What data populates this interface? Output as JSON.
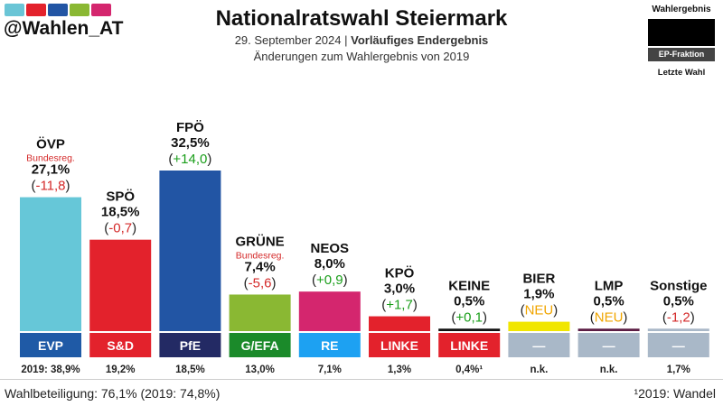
{
  "header": {
    "handle": "@Wahlen_AT",
    "title": "Nationalratswahl Steiermark",
    "date": "29. September 2024",
    "separator": " | ",
    "result_type": "Vorläufiges Endergebnis",
    "subtitle2": "Änderungen zum Wahlergebnis von 2019",
    "brand_colors": [
      "#6ac5d6",
      "#e3222c",
      "#2255a4",
      "#8ab833",
      "#d4266e"
    ]
  },
  "legend": {
    "title": "Wahlergebnis",
    "ep_label": "EP-Fraktion",
    "last_label": "Letzte Wahl"
  },
  "chart_data": {
    "type": "bar",
    "ylim": [
      0,
      35
    ],
    "categories": [
      "ÖVP",
      "SPÖ",
      "FPÖ",
      "GRÜNE",
      "NEOS",
      "KPÖ",
      "KEINE",
      "BIER",
      "LMP",
      "Sonstige"
    ],
    "values": [
      27.1,
      18.5,
      32.5,
      7.4,
      8.0,
      3.0,
      0.5,
      1.9,
      0.5,
      0.5
    ],
    "value_labels": [
      "27,1%",
      "18,5%",
      "32,5%",
      "7,4%",
      "8,0%",
      "3,0%",
      "0,5%",
      "1,9%",
      "0,5%",
      "0,5%"
    ],
    "change_labels": [
      "-11,8",
      "-0,7",
      "+14,0",
      "-5,6",
      "+0,9",
      "+1,7",
      "+0,1",
      "NEU",
      "NEU",
      "-1,2"
    ],
    "change_types": [
      "neg",
      "neg",
      "pos",
      "neg",
      "pos",
      "pos",
      "pos",
      "new",
      "new",
      "neg"
    ],
    "notes": [
      "Bundesreg.",
      "",
      "",
      "Bundesreg.",
      "",
      "",
      "",
      "",
      "",
      ""
    ],
    "colors": [
      "#66c7d8",
      "#e3222c",
      "#2255a4",
      "#8ab833",
      "#d4266e",
      "#e3222c",
      "#111111",
      "#f1e600",
      "#5b1c43",
      "#a9b8c8"
    ],
    "ep_groups": [
      "EVP",
      "S&D",
      "PfE",
      "G/EFA",
      "RE",
      "LINKE",
      "LINKE",
      "—",
      "—",
      "—"
    ],
    "ep_colors": [
      "#1f5aa6",
      "#e3222c",
      "#232a64",
      "#1b8a2a",
      "#1da1f2",
      "#e3222c",
      "#e3222c",
      "#a9b8c8",
      "#a9b8c8",
      "#a9b8c8"
    ],
    "last_labels": [
      "2019: 38,9%",
      "19,2%",
      "18,5%",
      "13,0%",
      "7,1%",
      "1,3%",
      "0,4%¹",
      "n.k.",
      "n.k.",
      "1,7%"
    ],
    "change_colors": {
      "pos": "#1a9e1a",
      "neg": "#d42a2a",
      "new": "#f0a500"
    },
    "note_color": "#d42a2a"
  },
  "footer": {
    "turnout": "Wahlbeteiligung: 76,1% (2019: 74,8%)",
    "footnote": "¹2019: Wandel"
  }
}
